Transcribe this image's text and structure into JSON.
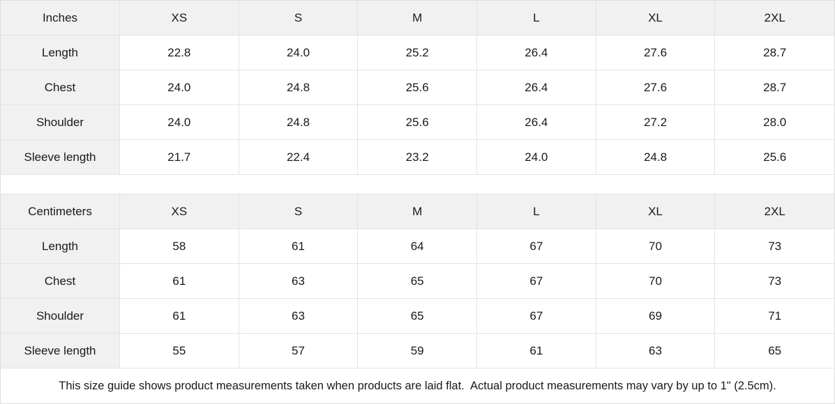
{
  "tables": [
    {
      "unit_label": "Inches",
      "columns": [
        "XS",
        "S",
        "M",
        "L",
        "XL",
        "2XL"
      ],
      "rows": [
        {
          "label": "Length",
          "values": [
            "22.8",
            "24.0",
            "25.2",
            "26.4",
            "27.6",
            "28.7"
          ]
        },
        {
          "label": "Chest",
          "values": [
            "24.0",
            "24.8",
            "25.6",
            "26.4",
            "27.6",
            "28.7"
          ]
        },
        {
          "label": "Shoulder",
          "values": [
            "24.0",
            "24.8",
            "25.6",
            "26.4",
            "27.2",
            "28.0"
          ]
        },
        {
          "label": "Sleeve length",
          "values": [
            "21.7",
            "22.4",
            "23.2",
            "24.0",
            "24.8",
            "25.6"
          ]
        }
      ]
    },
    {
      "unit_label": "Centimeters",
      "columns": [
        "XS",
        "S",
        "M",
        "L",
        "XL",
        "2XL"
      ],
      "rows": [
        {
          "label": "Length",
          "values": [
            "58",
            "61",
            "64",
            "67",
            "70",
            "73"
          ]
        },
        {
          "label": "Chest",
          "values": [
            "61",
            "63",
            "65",
            "67",
            "70",
            "73"
          ]
        },
        {
          "label": "Shoulder",
          "values": [
            "61",
            "63",
            "65",
            "67",
            "69",
            "71"
          ]
        },
        {
          "label": "Sleeve length",
          "values": [
            "55",
            "57",
            "59",
            "61",
            "63",
            "65"
          ]
        }
      ]
    }
  ],
  "footer": {
    "note": "This size guide shows product measurements taken when products are laid flat.  Actual product measurements may vary by up to 1\" (2.5cm)."
  },
  "colors": {
    "header_bg": "#f1f1f1",
    "border": "#e3e3e3",
    "text": "#191919"
  }
}
